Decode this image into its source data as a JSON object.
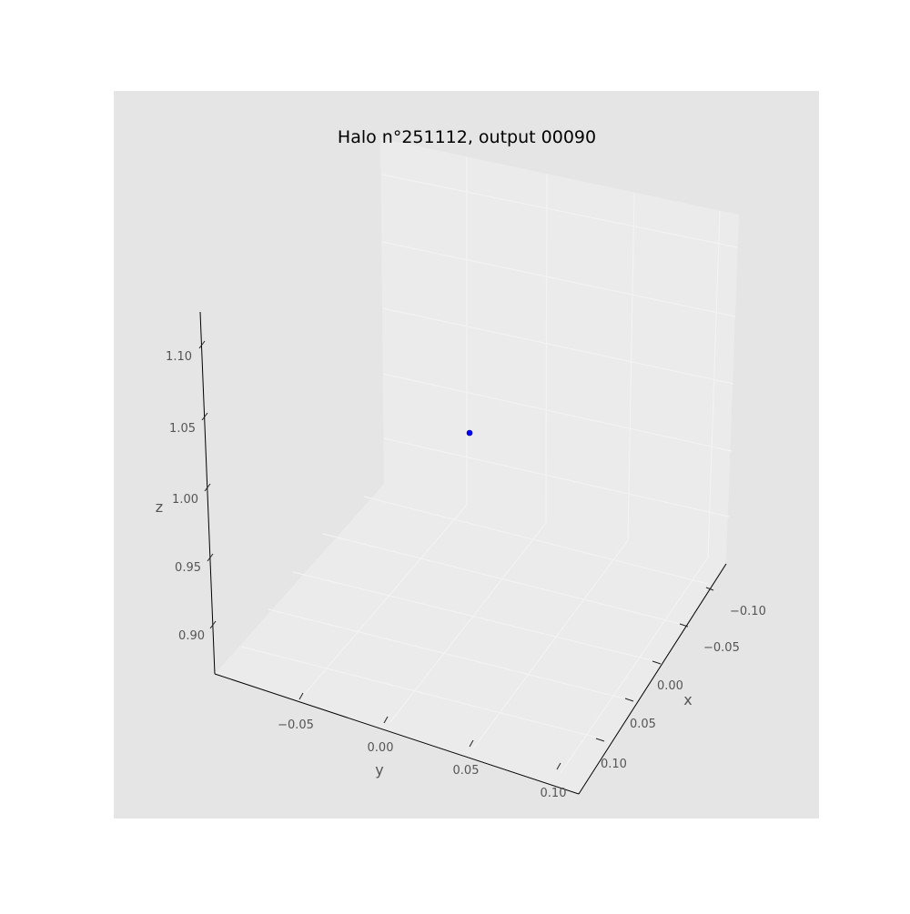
{
  "chart_data": {
    "type": "scatter",
    "projection": "3d",
    "title": "Halo n°251112, output 00090",
    "xlabel": "x",
    "ylabel": "y",
    "zlabel": "z",
    "x_ticks": [
      "−0.10",
      "−0.05",
      "0.00",
      "0.05",
      "0.10"
    ],
    "y_ticks": [
      "−0.05",
      "0.00",
      "0.05",
      "0.10"
    ],
    "z_ticks": [
      "0.90",
      "0.95",
      "1.00",
      "1.05",
      "1.10"
    ],
    "xlim": [
      -0.13,
      0.13
    ],
    "ylim": [
      -0.1,
      0.1
    ],
    "zlim": [
      0.87,
      1.13
    ],
    "grid": true,
    "series": [
      {
        "x": [
          0.0
        ],
        "y": [
          0.0
        ],
        "z": [
          1.0
        ],
        "color": "#0000ff"
      }
    ]
  },
  "colors": {
    "axes_background": "#e5e5e5",
    "pane": "#ebebeb",
    "grid": "#f2f2f2",
    "point": "#0000ff"
  }
}
